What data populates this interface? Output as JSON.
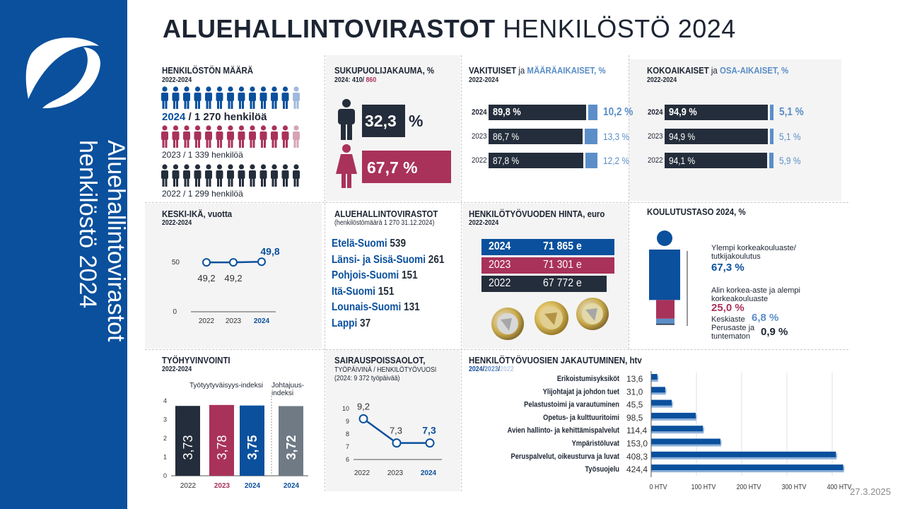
{
  "sidebar": {
    "title_line1": "Aluehallintovirastot",
    "title_line2": "henkilöstö 2024"
  },
  "header": {
    "title_bold": "ALUEHALLINTOVIRASTOT",
    "title_light": "HENKILÖSTÖ 2024"
  },
  "date": "27.3.2025",
  "colors": {
    "navy": "#0a509d",
    "dark": "#242d3b",
    "red": "#a9325a",
    "lightblue": "#5b8ec8",
    "gray": "#707a85"
  },
  "headcount": {
    "title": "HENKILÖSTÖN MÄÄRÄ",
    "period": "2022-2024",
    "rows": [
      {
        "year": "2024",
        "text": " / 1 270 henkilöä",
        "value": 1270
      },
      {
        "year": "2023",
        "text": " / 1 339 henkilöä",
        "value": 1339
      },
      {
        "year": "2022",
        "text": " / 1 299 henkilöä",
        "value": 1299
      }
    ]
  },
  "gender": {
    "title": "SUKUPUOLIJAKAUMA, %",
    "sub_prefix": "2024: 410/ ",
    "sub_red": "860",
    "male_value": "32,3",
    "male_unit": "%",
    "female_value": "67,7 %"
  },
  "permanent": {
    "title_a": "VAKITUISET",
    "title_mid": " ja ",
    "title_b": "MÄÄRÄAIKAISET, %",
    "period": "2022-2024",
    "rows": [
      {
        "year": "2024",
        "a": "89,8 %",
        "b": "10,2 %",
        "a_val": 89.8,
        "b_val": 10.2
      },
      {
        "year": "2023",
        "a": "86,7 %",
        "b": "13,3 %",
        "a_val": 86.7,
        "b_val": 13.3
      },
      {
        "year": "2022",
        "a": "87,8 %",
        "b": "12,2 %",
        "a_val": 87.8,
        "b_val": 12.2
      }
    ]
  },
  "fulltime": {
    "title_a": "KOKOAIKAISET",
    "title_mid": " ja ",
    "title_b": "OSA-AIKAISET, %",
    "period": "2022-2024",
    "rows": [
      {
        "year": "2024",
        "a": "94,9 %",
        "b": "5,1 %",
        "a_val": 94.9,
        "b_val": 5.1
      },
      {
        "year": "2023",
        "a": "94,9 %",
        "b": "5,1 %",
        "a_val": 94.9,
        "b_val": 5.1
      },
      {
        "year": "2022",
        "a": "94,1 %",
        "b": "5,9 %",
        "a_val": 94.1,
        "b_val": 5.9
      }
    ]
  },
  "age": {
    "title": "KESKI-IKÄ, vuotta",
    "period": "2022-2024"
  },
  "agencies": {
    "title": "ALUEHALLINTOVIRASTOT",
    "sub": "(henkilöstömäärä 1 270 31.12.2024)",
    "items": [
      {
        "name": "Etelä-Suomi",
        "value": "539"
      },
      {
        "name": "Länsi- ja Sisä-Suomi",
        "value": "261"
      },
      {
        "name": "Pohjois-Suomi",
        "value": "151"
      },
      {
        "name": "Itä-Suomi",
        "value": "151"
      },
      {
        "name": "Lounais-Suomi",
        "value": "131"
      },
      {
        "name": "Lappi",
        "value": "37"
      }
    ]
  },
  "cost": {
    "title": "HENKILÖTYÖVUODEN HINTA, euro",
    "period": "2022-2024",
    "rows": [
      {
        "year": "2024",
        "value": "71 865 e"
      },
      {
        "year": "2023",
        "value": "71 301 e"
      },
      {
        "year": "2022",
        "value": "67 772 e"
      }
    ]
  },
  "education": {
    "title": "KOULUTUSTASO 2024, %",
    "items": [
      {
        "label": "Ylempi korkeakouluaste/ tutkijakoulutus",
        "value": "67,3 %",
        "num": 67.3
      },
      {
        "label": "Alin korkea-aste ja alempi korkeakouluaste",
        "value": "25,0 %",
        "num": 25.0
      },
      {
        "label": "Keskiaste",
        "value": "6,8 %",
        "num": 6.8
      },
      {
        "label": "Perusaste ja tuntematon",
        "value": "0,9 %",
        "num": 0.9
      }
    ]
  },
  "wellbeing": {
    "title": "TYÖHYVINVOINTI",
    "period": "2022-2024",
    "label_a": "Työtyytyväisyys-indeksi",
    "label_b": "Johtajuus-indeksi"
  },
  "sickleave": {
    "title": "SAIRAUSPOISSAOLOT,",
    "sub1": "TYÖPÄIVINÄ / HENKILÖTYÖVUOSI",
    "sub2": "(2024: 9 372 työpäivää)"
  },
  "htv": {
    "title": "HENKILÖTYÖVUOSIEN JAKAUTUMINEN, htv",
    "legend_2024": "2024",
    "legend_2023": "2023",
    "legend_2022": "2022",
    "sep": "/"
  },
  "chart_data": [
    {
      "type": "line",
      "title": "KESKI-IKÄ, vuotta",
      "x": [
        "2022",
        "2023",
        "2024"
      ],
      "series": [
        {
          "values": [
            49.2,
            49.2,
            49.8
          ]
        }
      ],
      "value_labels": [
        "49,2",
        "49,2",
        "49,8"
      ],
      "yticks": [
        "0",
        "50"
      ]
    },
    {
      "type": "bar",
      "title": "TYÖHYVINVOINTI",
      "categories": [
        "2022",
        "2023",
        "2024",
        "2024"
      ],
      "values": [
        3.73,
        3.78,
        3.75,
        3.72
      ],
      "value_labels": [
        "3,73",
        "3,78",
        "3,75",
        "3,72"
      ],
      "groups": [
        "Työtyytyväisyys-indeksi",
        "Työtyytyväisyys-indeksi",
        "Työtyytyväisyys-indeksi",
        "Johtajuus-indeksi"
      ],
      "yticks": [
        "0",
        "1",
        "2",
        "3",
        "4"
      ],
      "ylim": [
        0,
        4
      ]
    },
    {
      "type": "line",
      "title": "SAIRAUSPOISSAOLOT,",
      "x": [
        "2022",
        "2023",
        "2024"
      ],
      "series": [
        {
          "values": [
            9.2,
            7.3,
            7.3
          ]
        }
      ],
      "value_labels": [
        "9,2",
        "7,3",
        "7,3"
      ],
      "yticks": [
        "6",
        "7",
        "8",
        "9",
        "10"
      ],
      "ylim": [
        6,
        10
      ]
    },
    {
      "type": "bar",
      "orientation": "horizontal",
      "title": "HENKILÖTYÖVUOSIEN JAKAUTUMINEN, htv",
      "categories": [
        "Erikoistumisyksiköt",
        "Ylijohtajat ja johdon tuet",
        "Pelastustoimi ja varautuminen",
        "Opetus- ja kulttuuritoimi",
        "Avien hallinto- ja kehittämispalvelut",
        "Ympäristöluvat",
        "Peruspalvelut, oikeusturva ja luvat",
        "Työsuojelu"
      ],
      "values": [
        13.6,
        31.0,
        45.5,
        98.5,
        114.4,
        153.0,
        408.3,
        424.4
      ],
      "value_labels": [
        "13,6",
        "31,0",
        "45,5",
        "98,5",
        "114,4",
        "153,0",
        "408,3",
        "424,4"
      ],
      "xticks": [
        "0 HTV",
        "100 HTV",
        "200 HTV",
        "300 HTV",
        "400 HTV"
      ],
      "xlim": [
        0,
        400
      ]
    }
  ]
}
